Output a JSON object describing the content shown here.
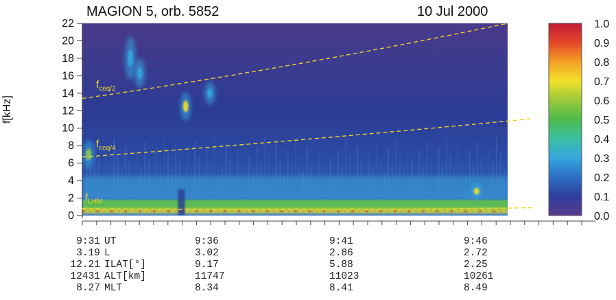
{
  "chart_data": {
    "type": "heatmap",
    "title_left": "MAGION 5, orb. 5852",
    "title_right": "10 Jul 2000",
    "ylabel": "f[kHz]",
    "ylim": [
      0,
      22
    ],
    "y_ticks": [
      "0",
      "2",
      "4",
      "6",
      "8",
      "10",
      "12",
      "14",
      "16",
      "18",
      "20",
      "22"
    ],
    "colorbar": {
      "range": [
        0.0,
        1.0
      ],
      "ticks": [
        "0.0",
        "0.1",
        "0.2",
        "0.3",
        "0.4",
        "0.5",
        "0.6",
        "0.7",
        "0.8",
        "0.9",
        "1.0"
      ]
    },
    "annotations": [
      {
        "base": "f",
        "sub": "ceq/2",
        "y_start": 13.4,
        "y_end": 22.0,
        "x_start": 0.0,
        "x_end": 1.0
      },
      {
        "base": "f",
        "sub": "ceq/4",
        "y_start": 6.7,
        "y_end": 11.1,
        "x_start": 0.0,
        "x_end": 1.06
      },
      {
        "base": "f",
        "sub": "LHM",
        "y_start": 0.8,
        "y_end": 0.9,
        "x_start": 0.0,
        "x_end": 1.06
      }
    ],
    "features": [
      {
        "label": "emission",
        "t": 0.015,
        "f": 7.0,
        "spread_f": 1.0,
        "intensity": 0.45
      },
      {
        "label": "emission",
        "t": 0.113,
        "f": 18.0,
        "spread_f": 1.5,
        "intensity": 0.35
      },
      {
        "label": "emission",
        "t": 0.135,
        "f": 16.3,
        "spread_f": 1.0,
        "intensity": 0.35
      },
      {
        "label": "emission",
        "t": 0.243,
        "f": 12.5,
        "spread_f": 1.0,
        "intensity": 0.6
      },
      {
        "label": "emission",
        "t": 0.3,
        "f": 14.0,
        "spread_f": 0.8,
        "intensity": 0.3
      },
      {
        "label": "emission",
        "t": 0.927,
        "f": 2.8,
        "spread_f": 0.6,
        "intensity": 0.6
      }
    ],
    "ephemeris": {
      "rows": [
        {
          "values": [
            "9:31",
            "9:36",
            "9:41",
            "9:46"
          ],
          "label": "UT"
        },
        {
          "values": [
            "3.19",
            "3.02",
            "2.86",
            "2.72"
          ],
          "label": "L"
        },
        {
          "values": [
            "12.21",
            "9.17",
            "5.88",
            "2.25"
          ],
          "label": "ILAT[°]"
        },
        {
          "values": [
            "12431",
            "11747",
            "11023",
            "10261"
          ],
          "label": "ALT[km]"
        },
        {
          "values": [
            "8.27",
            "8.34",
            "8.41",
            "8.49"
          ],
          "label": "MLT"
        }
      ]
    }
  }
}
